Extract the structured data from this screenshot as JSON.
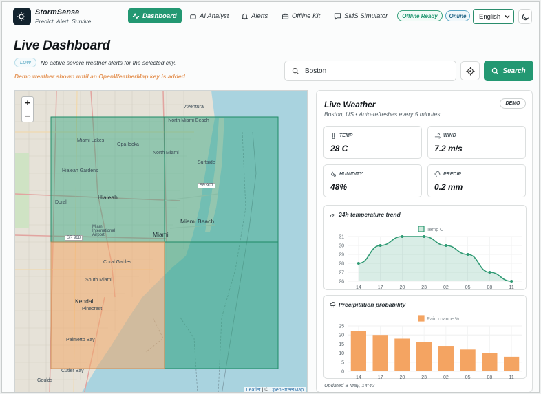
{
  "brand": {
    "name": "StormSense",
    "tagline": "Predict. Alert. Survive."
  },
  "nav": {
    "dashboard": "Dashboard",
    "ai_analyst": "AI Analyst",
    "alerts": "Alerts",
    "offline_kit": "Offline Kit",
    "sms_simulator": "SMS Simulator"
  },
  "status": {
    "offline": "Offline Ready",
    "online": "Online"
  },
  "language": {
    "selected": "English"
  },
  "page": {
    "title": "Live Dashboard",
    "severity_badge": "LOW",
    "alert_message": "No active severe weather alerts for the selected city.",
    "demo_note": "Demo weather shown until an OpenWeatherMap key is added"
  },
  "search": {
    "value": "Boston",
    "button_label": "Search"
  },
  "map": {
    "zoom_in": "+",
    "zoom_out": "−",
    "attribution_leaflet": "Leaflet",
    "attribution_sep": "| ©",
    "attribution_osm": "OpenStreetMap",
    "labels": {
      "aventura": "Aventura",
      "north_miami_beach": "North Miami Beach",
      "miami_lakes": "Miami Lakes",
      "opa_locka": "Opa-locka",
      "north_miami": "North Miami",
      "surfside": "Surfside",
      "hialeah_gardens": "Hialeah Gardens",
      "sr907": "SR 907",
      "hialeah": "Hialeah",
      "doral": "Doral",
      "miami_beach": "Miami Beach",
      "miami_intl": "Miami International Airport",
      "sr968": "SR 968",
      "miami": "Miami",
      "coral_gables": "Coral Gables",
      "south_miami": "South Miami",
      "kendall": "Kendall",
      "pinecrest": "Pinecrest",
      "palmetto_bay": "Palmetto Bay",
      "cutler_bay": "Cutler Bay",
      "goulds": "Goulds"
    },
    "colors": {
      "green_overlay": "#2fa37e",
      "orange_overlay": "#f0a868"
    }
  },
  "weather": {
    "title": "Live Weather",
    "badge": "DEMO",
    "location": "Boston, US",
    "refresh_note": "Auto-refreshes every 5 minutes",
    "temp_label": "TEMP",
    "temp_value": "28 C",
    "wind_label": "WIND",
    "wind_value": "7.2 m/s",
    "humidity_label": "HUMIDITY",
    "humidity_value": "48%",
    "precip_label": "PRECIP",
    "precip_value": "0.2 mm",
    "updated": "Updated 8 May, 14:42"
  },
  "temp_chart_title": "24h temperature trend",
  "precip_chart_title": "Precipitation probability",
  "chart_data": [
    {
      "type": "line",
      "title": "24h temperature trend",
      "series": [
        {
          "name": "Temp C",
          "values": [
            28,
            30,
            31,
            31,
            30,
            29,
            27,
            26
          ]
        }
      ],
      "categories": [
        "14",
        "17",
        "20",
        "23",
        "02",
        "05",
        "08",
        "11"
      ],
      "yticks": [
        26,
        27,
        28,
        29,
        30,
        31
      ],
      "ylim": [
        26,
        31
      ],
      "color": "#2f9a73",
      "fill": true,
      "legend": "top-center",
      "grid": true
    },
    {
      "type": "bar",
      "title": "Precipitation probability",
      "series": [
        {
          "name": "Rain chance %",
          "values": [
            22,
            20,
            18,
            16,
            14,
            12,
            10,
            8
          ]
        }
      ],
      "categories": [
        "14",
        "17",
        "20",
        "23",
        "02",
        "05",
        "08",
        "11"
      ],
      "yticks": [
        0,
        5,
        10,
        15,
        20,
        25
      ],
      "ylim": [
        0,
        25
      ],
      "color": "#f4a462",
      "legend": "top-center",
      "grid": true
    }
  ]
}
